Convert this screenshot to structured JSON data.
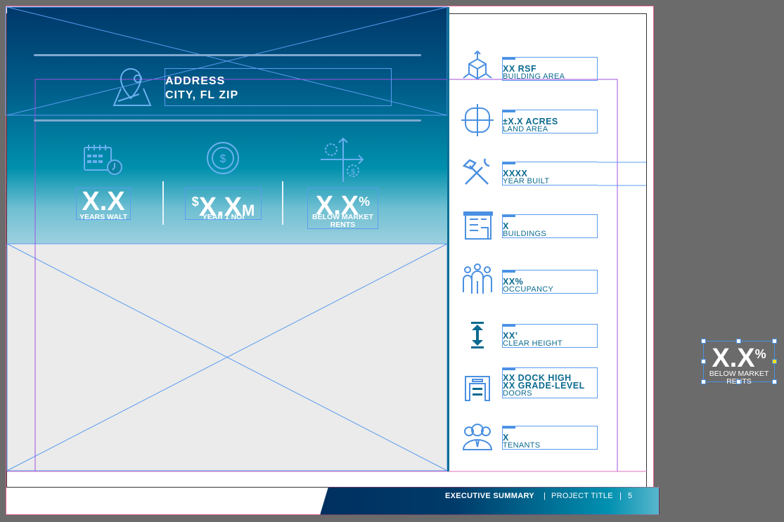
{
  "hero": {
    "address_line1": "ADDRESS",
    "address_line2": "CITY, FL ZIP",
    "stats": [
      {
        "value": "X.X",
        "prefix": "",
        "suffix": "",
        "label": "YEARS WALT",
        "icon": "calendar-clock-icon"
      },
      {
        "value": "X.X",
        "prefix": "$",
        "suffix": "M",
        "label": "YEAR 1 NOI",
        "icon": "dollar-coin-icon"
      },
      {
        "value": "X.X",
        "prefix": "",
        "suffix": "%",
        "label": "BELOW MARKET RENTS",
        "icon": "chart-dollar-icon"
      }
    ]
  },
  "features": [
    {
      "value": "XX RSF",
      "label": "BUILDING AREA",
      "icon": "cube-arrows-icon"
    },
    {
      "value": "±X.X  ACRES",
      "label": "LAND AREA",
      "icon": "land-crosshair-icon"
    },
    {
      "value": "XXXX",
      "label": "YEAR BUILT",
      "icon": "hammer-wrench-icon"
    },
    {
      "value": "X",
      "label": "BUILDINGS",
      "icon": "building-icon"
    },
    {
      "value": "XX%",
      "label": "OCCUPANCY",
      "icon": "people-icon"
    },
    {
      "value": "XX’",
      "label": "CLEAR HEIGHT",
      "icon": "height-arrow-icon"
    },
    {
      "value": "XX DOCK HIGH",
      "value2": "XX GRADE-LEVEL",
      "label": "DOORS",
      "icon": "garage-door-icon"
    },
    {
      "value": "X",
      "label": "TENANTS",
      "icon": "tenants-icon"
    }
  ],
  "footer": {
    "section": "EXECUTIVE SUMMARY",
    "separator": "|",
    "project": "PROJECT TITLE",
    "page": "5"
  },
  "pasteboard": {
    "value": "X.X",
    "suffix": "%",
    "label": "BELOW MARKET RENTS"
  },
  "colors": {
    "navy": "#00386a",
    "teal": "#0090ad",
    "text_blue": "#0b6a8f",
    "icon_blue": "#4a90e2",
    "frame_blue": "#5a9cf0",
    "canvas": "#6b6b6b"
  }
}
